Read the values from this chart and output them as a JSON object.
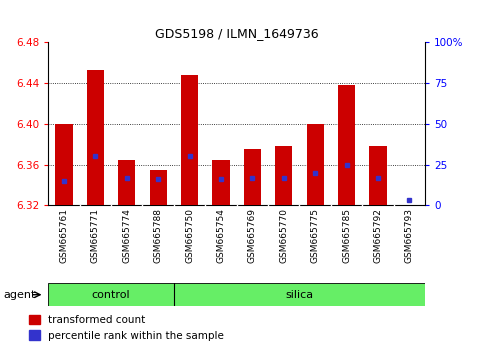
{
  "title": "GDS5198 / ILMN_1649736",
  "samples": [
    "GSM665761",
    "GSM665771",
    "GSM665774",
    "GSM665788",
    "GSM665750",
    "GSM665754",
    "GSM665769",
    "GSM665770",
    "GSM665775",
    "GSM665785",
    "GSM665792",
    "GSM665793"
  ],
  "groups": [
    "control",
    "control",
    "control",
    "control",
    "silica",
    "silica",
    "silica",
    "silica",
    "silica",
    "silica",
    "silica",
    "silica"
  ],
  "transformed_count": [
    6.4,
    6.453,
    6.365,
    6.355,
    6.448,
    6.365,
    6.375,
    6.378,
    6.4,
    6.438,
    6.378,
    6.32
  ],
  "percentile_rank": [
    15,
    30,
    17,
    16,
    30,
    16,
    17,
    17,
    20,
    25,
    17,
    3
  ],
  "ylim": [
    6.32,
    6.48
  ],
  "yticks": [
    6.32,
    6.36,
    6.4,
    6.44,
    6.48
  ],
  "right_yticks": [
    0,
    25,
    50,
    75,
    100
  ],
  "bar_color": "#cc0000",
  "percentile_color": "#3333cc",
  "group_color": "#66ee66",
  "legend_red": "transformed count",
  "legend_blue": "percentile rank within the sample",
  "bar_width": 0.55
}
